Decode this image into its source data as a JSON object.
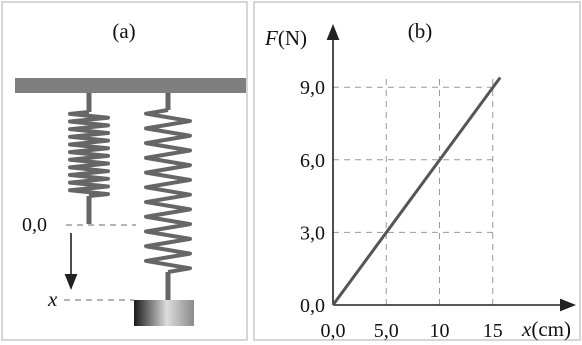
{
  "panel_a": {
    "label": "(a)",
    "marker_zero": "0,0",
    "marker_x": "x"
  },
  "panel_b": {
    "label": "(b)",
    "y_axis_symbol": "F",
    "y_axis_unit": "(N)",
    "x_axis_symbol": "x",
    "x_axis_unit": "(cm)"
  },
  "chart_data": {
    "type": "line",
    "title": "",
    "xlabel": "x (cm)",
    "ylabel": "F (N)",
    "x_ticks": [
      "0,0",
      "5,0",
      "10",
      "15"
    ],
    "y_ticks": [
      "0,0",
      "3,0",
      "6,0",
      "9,0"
    ],
    "xlim": [
      0,
      18
    ],
    "ylim": [
      0,
      10.2
    ],
    "grid": true,
    "series": [
      {
        "x": [
          0,
          15.7
        ],
        "y": [
          0,
          9.4
        ]
      }
    ]
  },
  "colors": {
    "ceiling": "#7f7f7f",
    "spring": "#666666",
    "line": "#555555",
    "grid": "#999999",
    "panel_border": "#c8c8c8"
  }
}
